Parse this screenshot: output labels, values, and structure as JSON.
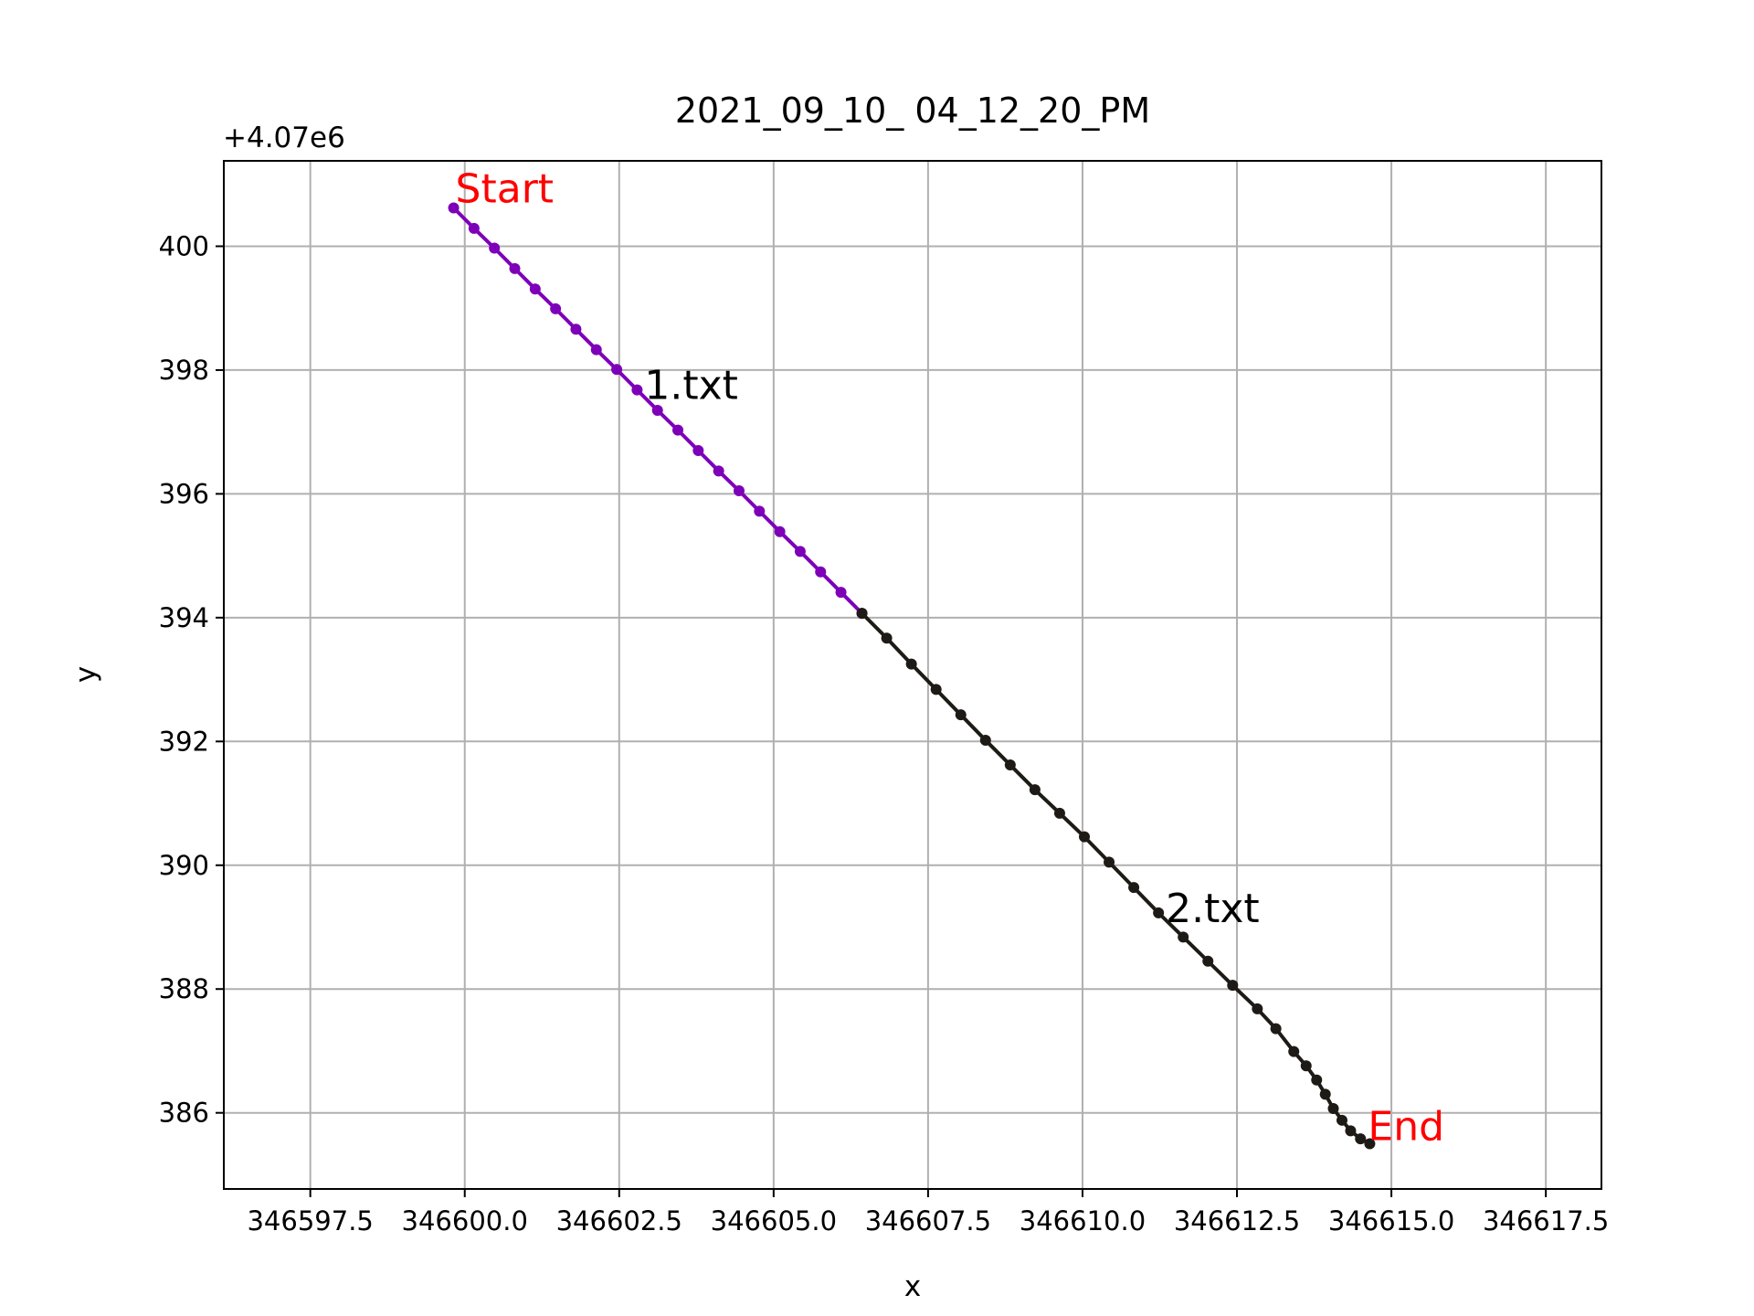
{
  "chart_data": {
    "type": "line",
    "title": "2021_09_10_ 04_12_20_PM",
    "x_label": "x",
    "y_label": "y",
    "y_offset_label": "+4.07e6",
    "start_label": "Start",
    "end_label": "End",
    "annotation_color": "#ff0000",
    "grid": true,
    "xlim": [
      346596.1,
      346618.4
    ],
    "ylim": [
      384.77,
      401.38
    ],
    "xticks": [
      346597.5,
      {
        "value": 346600,
        "label": "346600.0"
      },
      346602.5,
      {
        "value": 346605,
        "label": "346605.0"
      },
      346607.5,
      {
        "value": 346610,
        "label": "346610.0"
      },
      346612.5,
      {
        "value": 346615,
        "label": "346615.0"
      },
      346617.5
    ],
    "yticks": [
      386,
      388,
      390,
      392,
      394,
      396,
      398,
      400
    ],
    "series": [
      {
        "name": "1.txt",
        "color": "#7d00b8",
        "x": [
          346599.82,
          346600.15,
          346600.48,
          346600.81,
          346601.14,
          346601.47,
          346601.8,
          346602.13,
          346602.46,
          346602.79,
          346603.12,
          346603.45,
          346603.78,
          346604.11,
          346604.44,
          346604.77,
          346605.1,
          346605.43,
          346605.76,
          346606.09,
          346606.43
        ],
        "values": [
          400.62,
          400.29,
          399.97,
          399.64,
          399.31,
          398.99,
          398.66,
          398.33,
          398.01,
          397.68,
          397.35,
          397.03,
          396.7,
          396.37,
          396.05,
          395.72,
          395.39,
          395.07,
          394.74,
          394.41,
          394.07
        ]
      },
      {
        "name": "2.txt",
        "color": "#1e1a16",
        "x": [
          346606.43,
          346606.83,
          346607.23,
          346607.63,
          346608.03,
          346608.43,
          346608.83,
          346609.23,
          346609.63,
          346610.03,
          346610.43,
          346610.83,
          346611.23,
          346611.63,
          346612.03,
          346612.43,
          346612.83,
          346613.13,
          346613.42,
          346613.62,
          346613.79,
          346613.93,
          346614.06,
          346614.2,
          346614.34,
          346614.5,
          346614.65
        ],
        "values": [
          394.07,
          393.67,
          393.25,
          392.84,
          392.43,
          392.02,
          391.62,
          391.22,
          390.84,
          390.46,
          390.05,
          389.64,
          389.23,
          388.84,
          388.45,
          388.06,
          387.68,
          387.36,
          386.99,
          386.76,
          386.53,
          386.3,
          386.07,
          385.88,
          385.71,
          385.58,
          385.5
        ]
      }
    ]
  }
}
